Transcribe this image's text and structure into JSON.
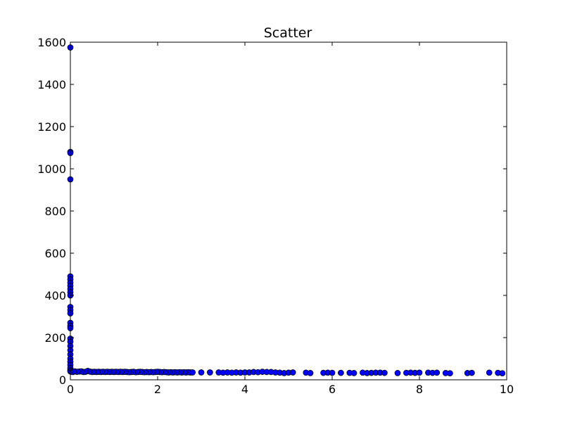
{
  "chart_data": {
    "type": "scatter",
    "title": "Scatter",
    "xlabel": "",
    "ylabel": "",
    "xlim": [
      0,
      10
    ],
    "ylim": [
      0,
      1600
    ],
    "x_ticks": [
      0,
      2,
      4,
      6,
      8,
      10
    ],
    "y_ticks": [
      0,
      200,
      400,
      600,
      800,
      1000,
      1200,
      1400,
      1600
    ],
    "grid": false,
    "legend": "none",
    "marker_color": "#0000ff",
    "series": [
      {
        "x": [
          0,
          0,
          0,
          0,
          0,
          0,
          0,
          0,
          0,
          0,
          0,
          0,
          0,
          0,
          0,
          0,
          0,
          0,
          0,
          0,
          0,
          0,
          0,
          0,
          0,
          0,
          0,
          0,
          0.03,
          0.06,
          0.1,
          0.15,
          0.2,
          0.25,
          0.3,
          0.35,
          0.4,
          0.45,
          0.5,
          0.55,
          0.6,
          0.65,
          0.7,
          0.75,
          0.8,
          0.85,
          0.9,
          0.95,
          1.0,
          1.05,
          1.1,
          1.15,
          1.2,
          1.25,
          1.3,
          1.35,
          1.4,
          1.45,
          1.5,
          1.55,
          1.6,
          1.65,
          1.7,
          1.75,
          1.8,
          1.85,
          1.9,
          1.95,
          2.0,
          2.05,
          2.1,
          2.15,
          2.2,
          2.25,
          2.3,
          2.35,
          2.4,
          2.45,
          2.5,
          2.55,
          2.6,
          2.65,
          2.7,
          2.75,
          2.8,
          3.0,
          3.2,
          3.4,
          3.5,
          3.6,
          3.7,
          3.8,
          3.9,
          4.0,
          4.1,
          4.2,
          4.3,
          4.4,
          4.5,
          4.6,
          4.7,
          4.8,
          4.9,
          5.0,
          5.1,
          5.4,
          5.5,
          5.8,
          5.9,
          6.0,
          6.2,
          6.4,
          6.5,
          6.7,
          6.8,
          6.9,
          7.0,
          7.1,
          7.2,
          7.5,
          7.7,
          7.8,
          7.9,
          8.0,
          8.2,
          8.3,
          8.4,
          8.6,
          8.7,
          9.1,
          9.2,
          9.6,
          9.8,
          9.9
        ],
        "y": [
          1575,
          1080,
          1075,
          950,
          490,
          475,
          460,
          445,
          430,
          415,
          400,
          345,
          330,
          315,
          270,
          255,
          245,
          195,
          180,
          160,
          140,
          120,
          100,
          85,
          70,
          55,
          45,
          40,
          38,
          37,
          40,
          38,
          39,
          40,
          37,
          38,
          42,
          39,
          37,
          38,
          37,
          38,
          37,
          38,
          37,
          38,
          37,
          38,
          37,
          38,
          37,
          38,
          37,
          38,
          37,
          36,
          37,
          38,
          36,
          37,
          38,
          37,
          36,
          37,
          36,
          37,
          36,
          37,
          38,
          37,
          36,
          37,
          36,
          35,
          36,
          35,
          36,
          35,
          36,
          35,
          36,
          35,
          36,
          35,
          35,
          35,
          35,
          35,
          34,
          35,
          34,
          35,
          34,
          35,
          35,
          37,
          36,
          38,
          37,
          37,
          35,
          34,
          32,
          34,
          35,
          34,
          32,
          33,
          34,
          33,
          33,
          33,
          32,
          34,
          32,
          33,
          34,
          34,
          33,
          32,
          33,
          34,
          33,
          34,
          34,
          33,
          34,
          32,
          31,
          32,
          33,
          34,
          33,
          31
        ]
      }
    ]
  }
}
